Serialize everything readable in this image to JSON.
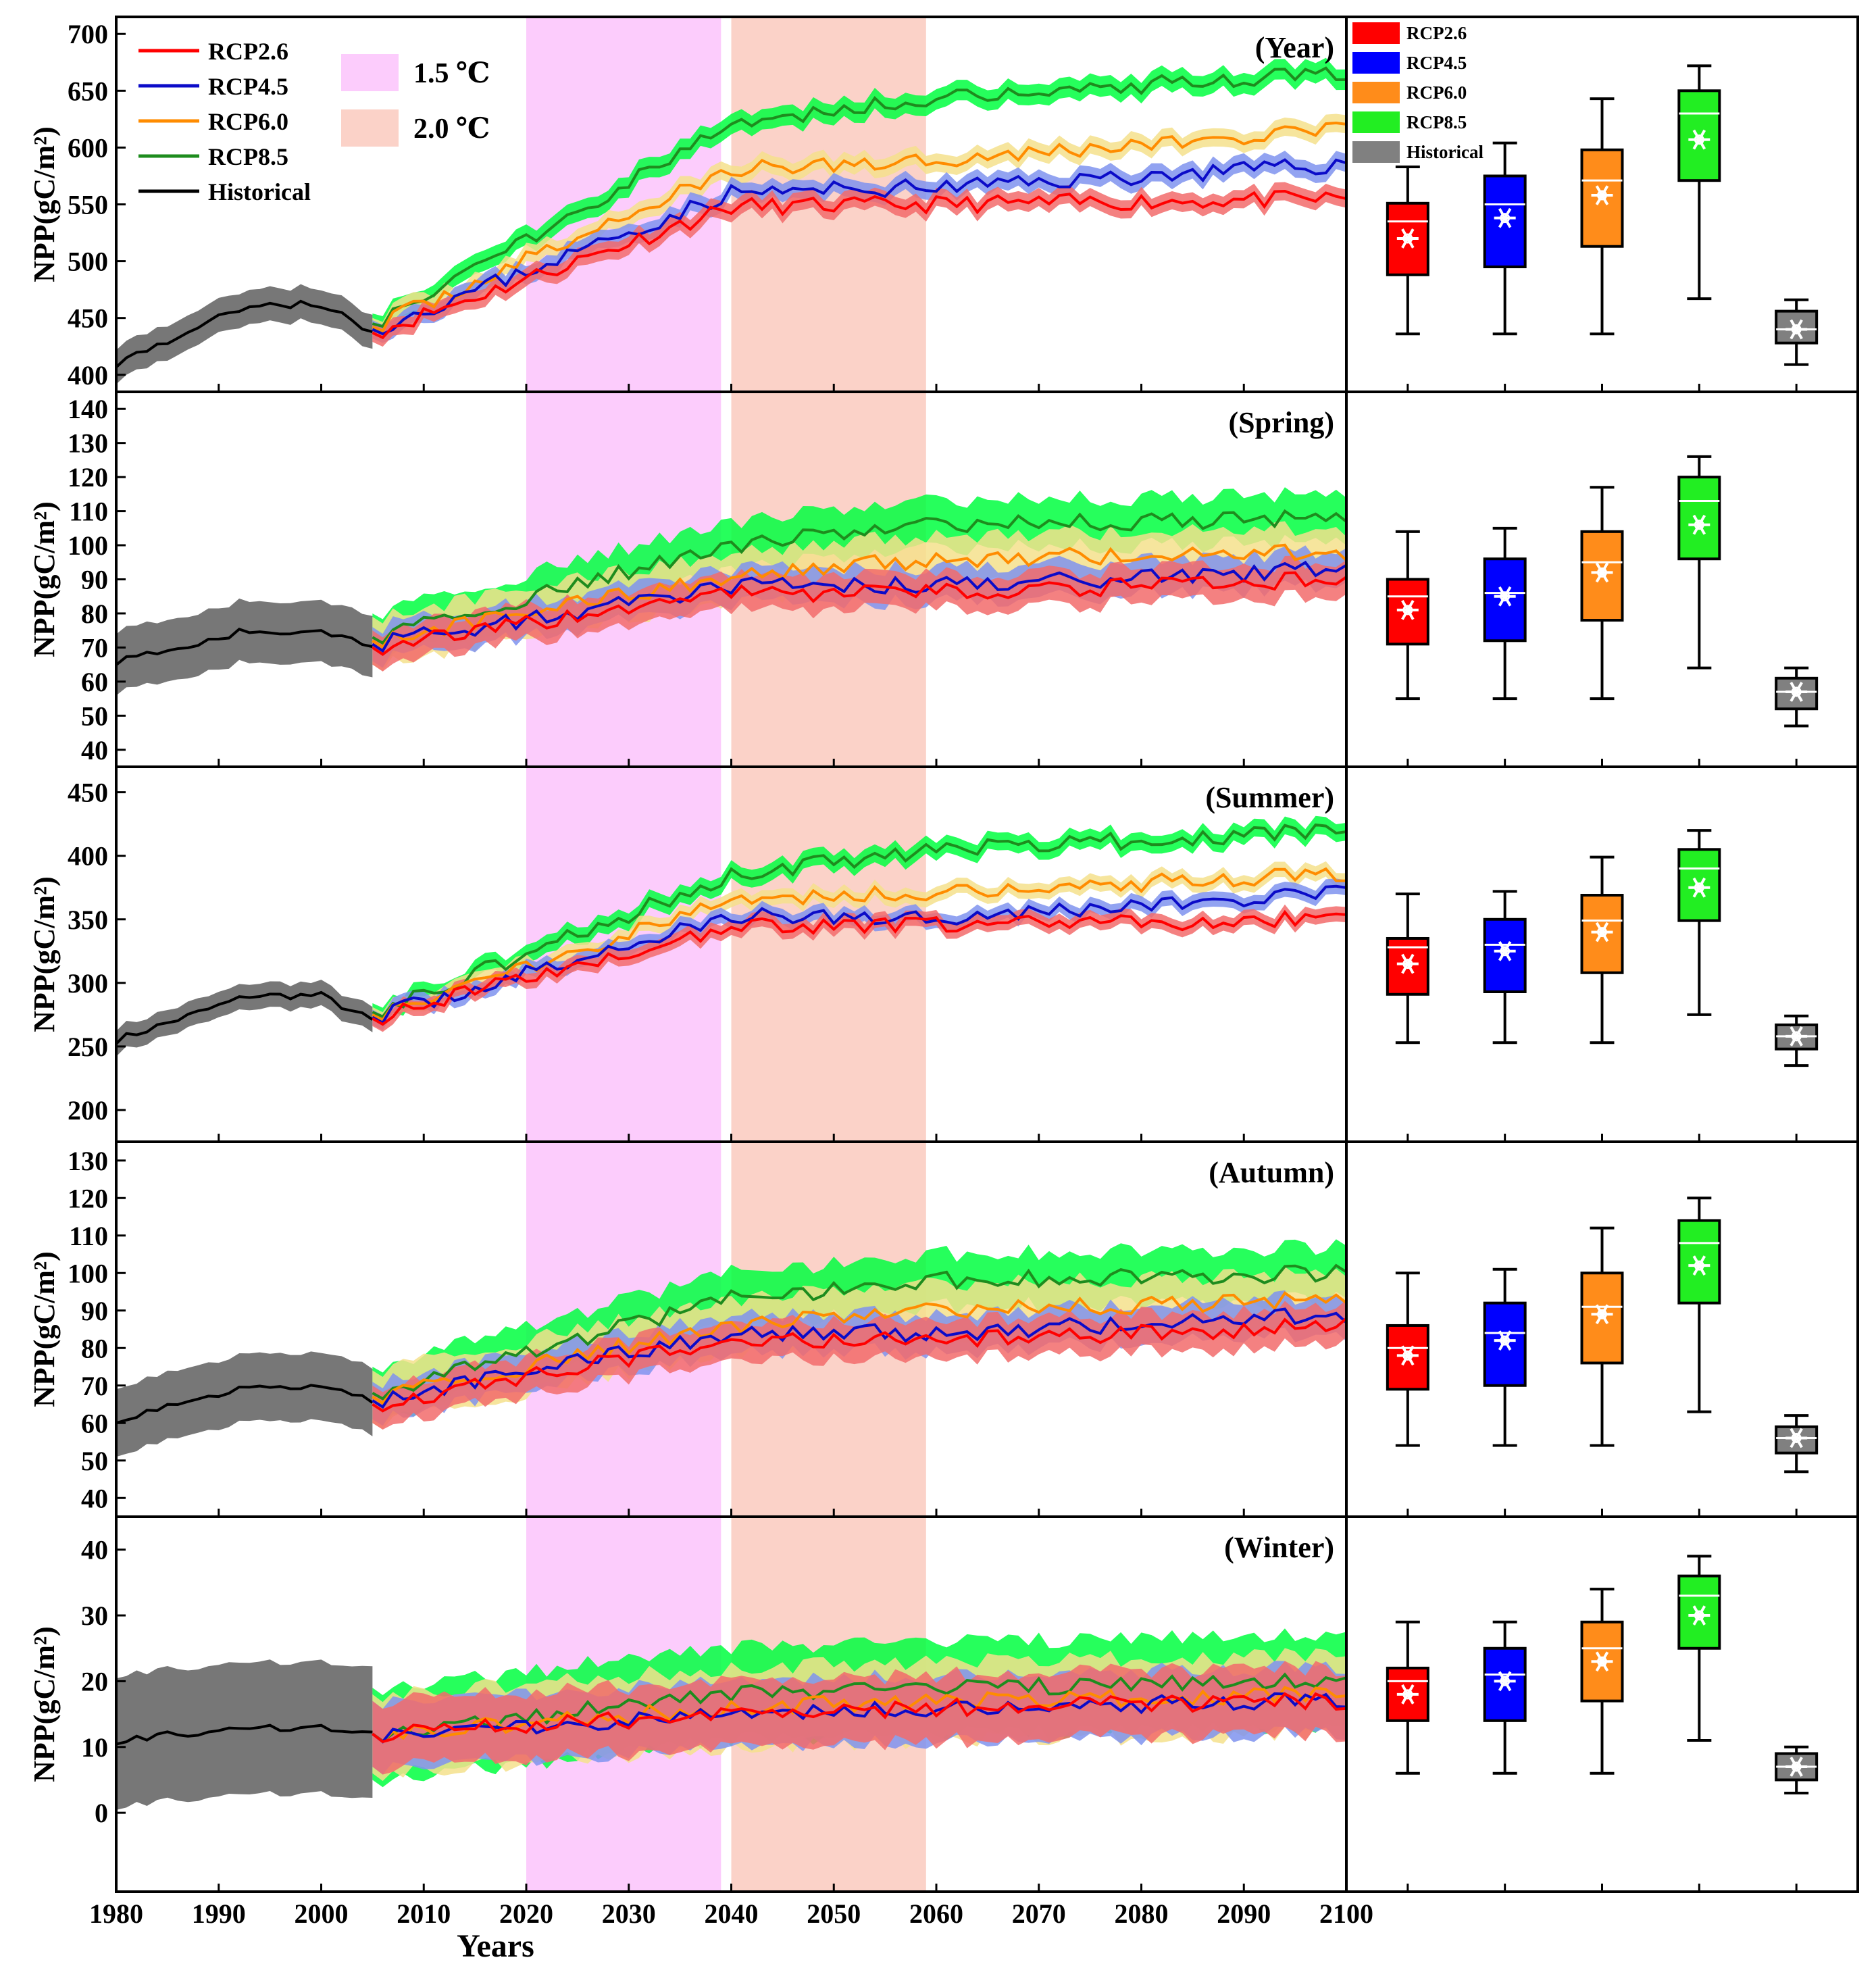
{
  "colors": {
    "rcp26": "#ff0000",
    "rcp26_band": "#f26b6b",
    "rcp45": "#0b0bc8",
    "rcp45_band": "#7f93ee",
    "rcp60": "#ff8c00",
    "rcp60_band": "#f5e08c",
    "rcp85": "#1e8c1e",
    "rcp85_band": "#00ff40",
    "hist": "#000000",
    "hist_band": "#707070",
    "box_rcp26": "#ff0000",
    "box_rcp45": "#0000ff",
    "box_rcp60": "#ff8c1a",
    "box_rcp85": "#22ee22",
    "box_hist": "#808080",
    "warming_15": "#fcccfc",
    "warming_20": "#fbd2c8"
  },
  "legend": {
    "lines": [
      "RCP2.6",
      "RCP4.5",
      "RCP6.0",
      "RCP8.5",
      "Historical"
    ],
    "warming": [
      "1.5 ℃",
      "2.0 ℃"
    ],
    "boxes": [
      "RCP2.6",
      "RCP4.5",
      "RCP6.0",
      "RCP8.5",
      "Historical"
    ]
  },
  "chart_data": {
    "type": "line",
    "xlabel": "Years",
    "ylabel": "NPP(gC/m²)",
    "x_ticks": [
      "1980",
      "1990",
      "2000",
      "2010",
      "2020",
      "2030",
      "2040",
      "2050",
      "2060",
      "2070",
      "2080",
      "2090",
      "2100"
    ],
    "xlim": [
      1980,
      2100
    ],
    "warming_periods": [
      {
        "name": "1.5 ℃",
        "start": 2020,
        "end": 2039
      },
      {
        "name": "2.0 ℃",
        "start": 2040,
        "end": 2059
      }
    ],
    "panels": [
      {
        "title": "(Year)",
        "ylim": [
          385,
          715
        ],
        "y_ticks": [
          "400",
          "450",
          "500",
          "550",
          "600",
          "650",
          "700"
        ],
        "historical": {
          "start": 410,
          "end": 437,
          "peak": 462,
          "band": 15
        },
        "scenarios": {
          "RCP2.6": {
            "y2005": 437,
            "y2040": 548,
            "y2060": 550,
            "y2100": 555,
            "band": 8
          },
          "RCP4.5": {
            "y2005": 440,
            "y2040": 560,
            "y2060": 565,
            "y2100": 585,
            "band": 8
          },
          "RCP6.0": {
            "y2005": 442,
            "y2040": 580,
            "y2060": 590,
            "y2100": 615,
            "band": 8
          },
          "RCP8.5": {
            "y2005": 445,
            "y2040": 620,
            "y2060": 645,
            "y2100": 665,
            "band": 9
          }
        },
        "boxes": [
          {
            "name": "RCP2.6",
            "min": 436,
            "q1": 488,
            "median": 535,
            "q3": 551,
            "max": 583,
            "mean": 520
          },
          {
            "name": "RCP4.5",
            "min": 436,
            "q1": 495,
            "median": 550,
            "q3": 575,
            "max": 604,
            "mean": 538
          },
          {
            "name": "RCP6.0",
            "min": 436,
            "q1": 513,
            "median": 571,
            "q3": 598,
            "max": 643,
            "mean": 558
          },
          {
            "name": "RCP8.5",
            "min": 467,
            "q1": 571,
            "median": 630,
            "q3": 650,
            "max": 672,
            "mean": 607
          },
          {
            "name": "Historical",
            "min": 409,
            "q1": 428,
            "median": 440,
            "q3": 456,
            "max": 466,
            "mean": 440
          }
        ]
      },
      {
        "title": "(Spring)",
        "ylim": [
          35,
          145
        ],
        "y_ticks": [
          "40",
          "50",
          "60",
          "70",
          "80",
          "90",
          "100",
          "110",
          "120",
          "130",
          "140"
        ],
        "historical": {
          "start": 66,
          "end": 71,
          "peak": 75,
          "band": 9
        },
        "scenarios": {
          "RCP2.6": {
            "y2005": 70,
            "y2040": 86,
            "y2060": 86,
            "y2100": 90,
            "band": 5
          },
          "RCP4.5": {
            "y2005": 71,
            "y2040": 88,
            "y2060": 88,
            "y2100": 93,
            "band": 5
          },
          "RCP6.0": {
            "y2005": 72,
            "y2040": 91,
            "y2060": 96,
            "y2100": 98,
            "band": 7
          },
          "RCP8.5": {
            "y2005": 73,
            "y2040": 100,
            "y2060": 106,
            "y2100": 108,
            "band": 7
          }
        },
        "boxes": [
          {
            "name": "RCP2.6",
            "min": 55,
            "q1": 71,
            "median": 85,
            "q3": 90,
            "max": 104,
            "mean": 81
          },
          {
            "name": "RCP4.5",
            "min": 55,
            "q1": 72,
            "median": 86,
            "q3": 96,
            "max": 105,
            "mean": 85
          },
          {
            "name": "RCP6.0",
            "min": 55,
            "q1": 78,
            "median": 95,
            "q3": 104,
            "max": 117,
            "mean": 92
          },
          {
            "name": "RCP8.5",
            "min": 64,
            "q1": 96,
            "median": 113,
            "q3": 120,
            "max": 126,
            "mean": 106
          },
          {
            "name": "Historical",
            "min": 47,
            "q1": 52,
            "median": 57,
            "q3": 61,
            "max": 64,
            "mean": 57
          }
        ]
      },
      {
        "title": "(Summer)",
        "ylim": [
          175,
          470
        ],
        "y_ticks": [
          "200",
          "250",
          "300",
          "350",
          "400",
          "450"
        ],
        "historical": {
          "start": 255,
          "end": 270,
          "peak": 290,
          "band": 10
        },
        "scenarios": {
          "RCP2.6": {
            "y2005": 272,
            "y2040": 345,
            "y2060": 345,
            "y2100": 350,
            "band": 6
          },
          "RCP4.5": {
            "y2005": 273,
            "y2040": 352,
            "y2060": 352,
            "y2100": 370,
            "band": 6
          },
          "RCP6.0": {
            "y2005": 275,
            "y2040": 365,
            "y2060": 372,
            "y2100": 385,
            "band": 6
          },
          "RCP8.5": {
            "y2005": 277,
            "y2040": 385,
            "y2060": 405,
            "y2100": 420,
            "band": 7
          }
        },
        "boxes": [
          {
            "name": "RCP2.6",
            "min": 253,
            "q1": 291,
            "median": 328,
            "q3": 335,
            "max": 370,
            "mean": 315
          },
          {
            "name": "RCP4.5",
            "min": 253,
            "q1": 293,
            "median": 330,
            "q3": 350,
            "max": 372,
            "mean": 325
          },
          {
            "name": "RCP6.0",
            "min": 253,
            "q1": 308,
            "median": 349,
            "q3": 369,
            "max": 399,
            "mean": 340
          },
          {
            "name": "RCP8.5",
            "min": 275,
            "q1": 349,
            "median": 390,
            "q3": 405,
            "max": 420,
            "mean": 375
          },
          {
            "name": "Historical",
            "min": 235,
            "q1": 248,
            "median": 258,
            "q3": 267,
            "max": 274,
            "mean": 258
          }
        ]
      },
      {
        "title": "(Autumn)",
        "ylim": [
          35,
          135
        ],
        "y_ticks": [
          "40",
          "50",
          "60",
          "70",
          "80",
          "90",
          "100",
          "110",
          "120",
          "130"
        ],
        "historical": {
          "start": 61,
          "end": 66,
          "peak": 70,
          "band": 9
        },
        "scenarios": {
          "RCP2.6": {
            "y2005": 65,
            "y2040": 82,
            "y2060": 82,
            "y2100": 86,
            "band": 5
          },
          "RCP4.5": {
            "y2005": 66,
            "y2040": 84,
            "y2060": 84,
            "y2100": 89,
            "band": 5
          },
          "RCP6.0": {
            "y2005": 67,
            "y2040": 86,
            "y2060": 90,
            "y2100": 93,
            "band": 7
          },
          "RCP8.5": {
            "y2005": 68,
            "y2040": 93,
            "y2060": 98,
            "y2100": 100,
            "band": 7
          }
        },
        "boxes": [
          {
            "name": "RCP2.6",
            "min": 54,
            "q1": 69,
            "median": 80,
            "q3": 86,
            "max": 100,
            "mean": 78
          },
          {
            "name": "RCP4.5",
            "min": 54,
            "q1": 70,
            "median": 84,
            "q3": 92,
            "max": 101,
            "mean": 82
          },
          {
            "name": "RCP6.0",
            "min": 54,
            "q1": 76,
            "median": 91,
            "q3": 100,
            "max": 112,
            "mean": 89
          },
          {
            "name": "RCP8.5",
            "min": 63,
            "q1": 92,
            "median": 108,
            "q3": 114,
            "max": 120,
            "mean": 102
          },
          {
            "name": "Historical",
            "min": 47,
            "q1": 52,
            "median": 56,
            "q3": 59,
            "max": 62,
            "mean": 56
          }
        ]
      },
      {
        "title": "(Winter)",
        "ylim": [
          -12,
          45
        ],
        "y_ticks": [
          "0",
          "10",
          "20",
          "30",
          "40"
        ],
        "historical": {
          "start": 11,
          "end": 12,
          "peak": 13,
          "band": 10
        },
        "scenarios": {
          "RCP2.6": {
            "y2005": 12,
            "y2040": 15,
            "y2060": 16,
            "y2100": 17,
            "band": 5
          },
          "RCP4.5": {
            "y2005": 12,
            "y2040": 15,
            "y2060": 16,
            "y2100": 17,
            "band": 5
          },
          "RCP6.0": {
            "y2005": 12,
            "y2040": 16,
            "y2060": 17,
            "y2100": 18,
            "band": 6
          },
          "RCP8.5": {
            "y2005": 12,
            "y2040": 18,
            "y2060": 19,
            "y2100": 20,
            "band": 7
          }
        },
        "boxes": [
          {
            "name": "RCP2.6",
            "min": 6,
            "q1": 14,
            "median": 20,
            "q3": 22,
            "max": 29,
            "mean": 18
          },
          {
            "name": "RCP4.5",
            "min": 6,
            "q1": 14,
            "median": 21,
            "q3": 25,
            "max": 29,
            "mean": 20
          },
          {
            "name": "RCP6.0",
            "min": 6,
            "q1": 17,
            "median": 25,
            "q3": 29,
            "max": 34,
            "mean": 23
          },
          {
            "name": "RCP8.5",
            "min": 11,
            "q1": 25,
            "median": 33,
            "q3": 36,
            "max": 39,
            "mean": 30
          },
          {
            "name": "Historical",
            "min": 3,
            "q1": 5,
            "median": 7,
            "q3": 9,
            "max": 10,
            "mean": 7
          }
        ]
      }
    ]
  }
}
